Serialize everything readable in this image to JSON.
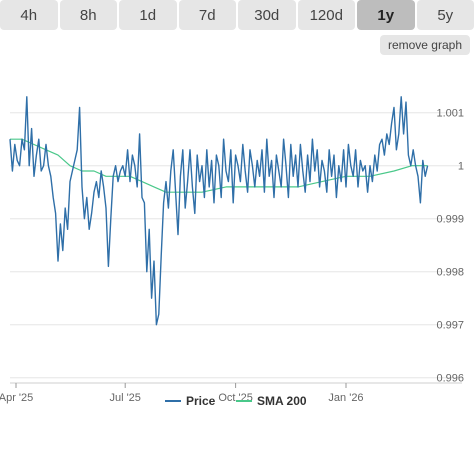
{
  "range_tabs": [
    "4h",
    "8h",
    "1d",
    "7d",
    "30d",
    "120d",
    "1y",
    "5y"
  ],
  "active_tab": "1y",
  "remove_graph_label": "remove graph",
  "chart_data": {
    "type": "line",
    "title": "",
    "xlabel": "",
    "ylabel": "",
    "x_tick_labels": [
      "Apr '25",
      "Jul '25",
      "Oct '25",
      "Jan '26"
    ],
    "x_tick_positions": [
      5,
      96,
      188,
      280
    ],
    "y_tick_labels": [
      "0.996",
      "0.997",
      "0.998",
      "0.999",
      "1",
      "1.001"
    ],
    "y_tick_values": [
      0.996,
      0.997,
      0.998,
      0.999,
      1.0,
      1.001
    ],
    "x_range": [
      0,
      355
    ],
    "ylim": [
      0.9959,
      1.0019
    ],
    "grid": true,
    "legend_position": "bottom",
    "series": [
      {
        "name": "Price",
        "color": "#2f6fa8",
        "points": [
          [
            0,
            1.0005
          ],
          [
            2,
            0.9999
          ],
          [
            4,
            1.0004
          ],
          [
            6,
            1.0001
          ],
          [
            8,
            1.0
          ],
          [
            10,
            1.0005
          ],
          [
            12,
            1.0003
          ],
          [
            14,
            1.0013
          ],
          [
            16,
            1.0
          ],
          [
            18,
            1.0007
          ],
          [
            20,
            0.9998
          ],
          [
            22,
            1.0002
          ],
          [
            24,
            1.0005
          ],
          [
            26,
            0.9999
          ],
          [
            28,
            1.0
          ],
          [
            30,
            1.0004
          ],
          [
            32,
            1.0
          ],
          [
            34,
            0.9998
          ],
          [
            36,
            0.9994
          ],
          [
            38,
            0.9991
          ],
          [
            40,
            0.9982
          ],
          [
            42,
            0.9989
          ],
          [
            44,
            0.9984
          ],
          [
            46,
            0.9992
          ],
          [
            48,
            0.9988
          ],
          [
            50,
            0.9997
          ],
          [
            52,
            0.9999
          ],
          [
            54,
            1.0001
          ],
          [
            56,
            1.0003
          ],
          [
            58,
            1.0011
          ],
          [
            60,
            0.9996
          ],
          [
            62,
            0.999
          ],
          [
            64,
            0.9994
          ],
          [
            66,
            0.9988
          ],
          [
            68,
            0.9991
          ],
          [
            70,
            0.9995
          ],
          [
            72,
            0.9997
          ],
          [
            74,
            0.9994
          ],
          [
            76,
            0.9999
          ],
          [
            78,
            0.9996
          ],
          [
            80,
            0.9992
          ],
          [
            82,
            0.9981
          ],
          [
            84,
            0.999
          ],
          [
            86,
            0.9998
          ],
          [
            88,
            1.0
          ],
          [
            90,
            0.9997
          ],
          [
            92,
            0.9999
          ],
          [
            94,
            1.0
          ],
          [
            96,
            0.9998
          ],
          [
            98,
            1.0003
          ],
          [
            100,
            0.9997
          ],
          [
            102,
            1.0002
          ],
          [
            104,
            1.0
          ],
          [
            106,
            0.9996
          ],
          [
            108,
            1.0006
          ],
          [
            110,
            0.9994
          ],
          [
            112,
            0.9993
          ],
          [
            114,
            0.998
          ],
          [
            116,
            0.9988
          ],
          [
            118,
            0.9975
          ],
          [
            120,
            0.9982
          ],
          [
            122,
            0.997
          ],
          [
            124,
            0.9972
          ],
          [
            126,
            0.9983
          ],
          [
            128,
            0.9993
          ],
          [
            130,
            0.9997
          ],
          [
            132,
            0.9992
          ],
          [
            134,
            0.9999
          ],
          [
            136,
            1.0003
          ],
          [
            138,
            0.9995
          ],
          [
            140,
            0.9987
          ],
          [
            142,
            0.9998
          ],
          [
            144,
            1.0003
          ],
          [
            146,
            0.9992
          ],
          [
            148,
            0.9997
          ],
          [
            150,
            1.0003
          ],
          [
            152,
            0.9996
          ],
          [
            154,
            0.9991
          ],
          [
            156,
            1.0002
          ],
          [
            158,
            0.9997
          ],
          [
            160,
            1.0
          ],
          [
            162,
            0.9994
          ],
          [
            164,
            1.0003
          ],
          [
            166,
            0.9996
          ],
          [
            168,
            1.0001
          ],
          [
            170,
            0.9993
          ],
          [
            172,
            1.0002
          ],
          [
            174,
            1.0
          ],
          [
            176,
            0.9994
          ],
          [
            178,
            1.0005
          ],
          [
            180,
            0.9999
          ],
          [
            182,
            0.9997
          ],
          [
            184,
            1.0003
          ],
          [
            186,
            0.9993
          ],
          [
            188,
            1.0002
          ],
          [
            190,
            1.0
          ],
          [
            192,
            0.9997
          ],
          [
            194,
            1.0004
          ],
          [
            196,
            0.9999
          ],
          [
            198,
            0.9995
          ],
          [
            200,
            1.0003
          ],
          [
            202,
            1.0
          ],
          [
            204,
            0.9996
          ],
          [
            206,
            1.0001
          ],
          [
            208,
            0.9998
          ],
          [
            210,
            1.0003
          ],
          [
            212,
            0.9995
          ],
          [
            214,
            1.0005
          ],
          [
            216,
            0.9998
          ],
          [
            218,
            1.0001
          ],
          [
            220,
            0.9994
          ],
          [
            222,
            1.0002
          ],
          [
            224,
            0.9999
          ],
          [
            226,
            0.9996
          ],
          [
            228,
            1.0005
          ],
          [
            230,
            1.0
          ],
          [
            232,
            0.9994
          ],
          [
            234,
            1.0004
          ],
          [
            236,
            0.9998
          ],
          [
            238,
            1.0002
          ],
          [
            240,
            0.9996
          ],
          [
            242,
            1.0004
          ],
          [
            244,
            0.9999
          ],
          [
            246,
            0.9995
          ],
          [
            248,
            1.0002
          ],
          [
            250,
            0.9997
          ],
          [
            252,
            1.0005
          ],
          [
            254,
            0.9999
          ],
          [
            256,
            1.0003
          ],
          [
            258,
            0.9996
          ],
          [
            260,
            1.0001
          ],
          [
            262,
            0.9999
          ],
          [
            264,
            0.9995
          ],
          [
            266,
            1.0003
          ],
          [
            268,
            0.9998
          ],
          [
            270,
            1.0002
          ],
          [
            272,
            0.9994
          ],
          [
            274,
            1.0
          ],
          [
            276,
            0.9997
          ],
          [
            278,
            1.0003
          ],
          [
            280,
            0.9996
          ],
          [
            282,
            1.0004
          ],
          [
            284,
            1.0
          ],
          [
            286,
            0.9998
          ],
          [
            288,
            1.0003
          ],
          [
            290,
            0.9996
          ],
          [
            292,
            1.0001
          ],
          [
            294,
            0.9999
          ],
          [
            296,
            1.0
          ],
          [
            298,
            0.9995
          ],
          [
            300,
            1.0
          ],
          [
            302,
            0.9997
          ],
          [
            304,
            1.0002
          ],
          [
            306,
            0.9999
          ],
          [
            308,
            1.0004
          ],
          [
            310,
            1.0005
          ],
          [
            312,
            1.0002
          ],
          [
            314,
            1.0006
          ],
          [
            316,
            1.0004
          ],
          [
            318,
            1.0008
          ],
          [
            320,
            1.0011
          ],
          [
            322,
            1.0003
          ],
          [
            324,
            1.0006
          ],
          [
            326,
            1.0013
          ],
          [
            328,
            1.0006
          ],
          [
            330,
            1.0012
          ],
          [
            332,
            1.0002
          ],
          [
            334,
            1.0
          ],
          [
            336,
            1.0003
          ],
          [
            338,
            1.0
          ],
          [
            340,
            0.9998
          ],
          [
            342,
            0.9993
          ],
          [
            344,
            1.0001
          ],
          [
            346,
            0.9998
          ],
          [
            348,
            1.0
          ]
        ]
      },
      {
        "name": "SMA 200",
        "color": "#4ac88a",
        "points": [
          [
            0,
            1.0005
          ],
          [
            10,
            1.0005
          ],
          [
            20,
            1.0004
          ],
          [
            30,
            1.0003
          ],
          [
            40,
            1.0002
          ],
          [
            50,
            1.0
          ],
          [
            60,
            0.9999
          ],
          [
            70,
            0.9999
          ],
          [
            80,
            0.9998
          ],
          [
            90,
            0.9998
          ],
          [
            100,
            0.9998
          ],
          [
            110,
            0.9997
          ],
          [
            120,
            0.9996
          ],
          [
            130,
            0.9995
          ],
          [
            140,
            0.9995
          ],
          [
            160,
            0.9995
          ],
          [
            180,
            0.9996
          ],
          [
            200,
            0.9996
          ],
          [
            220,
            0.9996
          ],
          [
            240,
            0.9996
          ],
          [
            260,
            0.9997
          ],
          [
            280,
            0.9998
          ],
          [
            300,
            0.9998
          ],
          [
            320,
            0.9999
          ],
          [
            335,
            1.0
          ],
          [
            348,
            1.0
          ]
        ]
      }
    ]
  }
}
